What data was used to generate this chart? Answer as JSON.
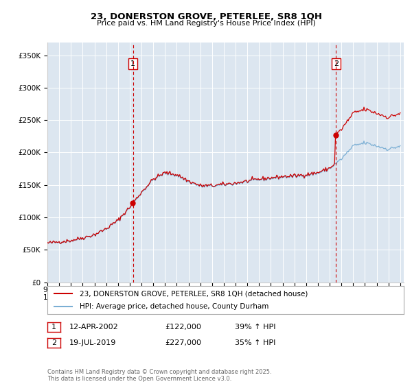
{
  "title": "23, DONERSTON GROVE, PETERLEE, SR8 1QH",
  "subtitle": "Price paid vs. HM Land Registry's House Price Index (HPI)",
  "ylim": [
    0,
    370000
  ],
  "yticks": [
    0,
    50000,
    100000,
    150000,
    200000,
    250000,
    300000,
    350000
  ],
  "ytick_labels": [
    "£0",
    "£50K",
    "£100K",
    "£150K",
    "£200K",
    "£250K",
    "£300K",
    "£350K"
  ],
  "background_color": "#dce6f0",
  "grid_color": "#ffffff",
  "red_line_color": "#cc0000",
  "blue_line_color": "#7bafd4",
  "sale1_date": "12-APR-2002",
  "sale1_price": 122000,
  "sale1_pct": "39%",
  "sale2_date": "19-JUL-2019",
  "sale2_price": 227000,
  "sale2_pct": "35%",
  "sale1_x": 2002.28,
  "sale2_x": 2019.54,
  "legend_label1": "23, DONERSTON GROVE, PETERLEE, SR8 1QH (detached house)",
  "legend_label2": "HPI: Average price, detached house, County Durham",
  "footer": "Contains HM Land Registry data © Crown copyright and database right 2025.\nThis data is licensed under the Open Government Licence v3.0."
}
